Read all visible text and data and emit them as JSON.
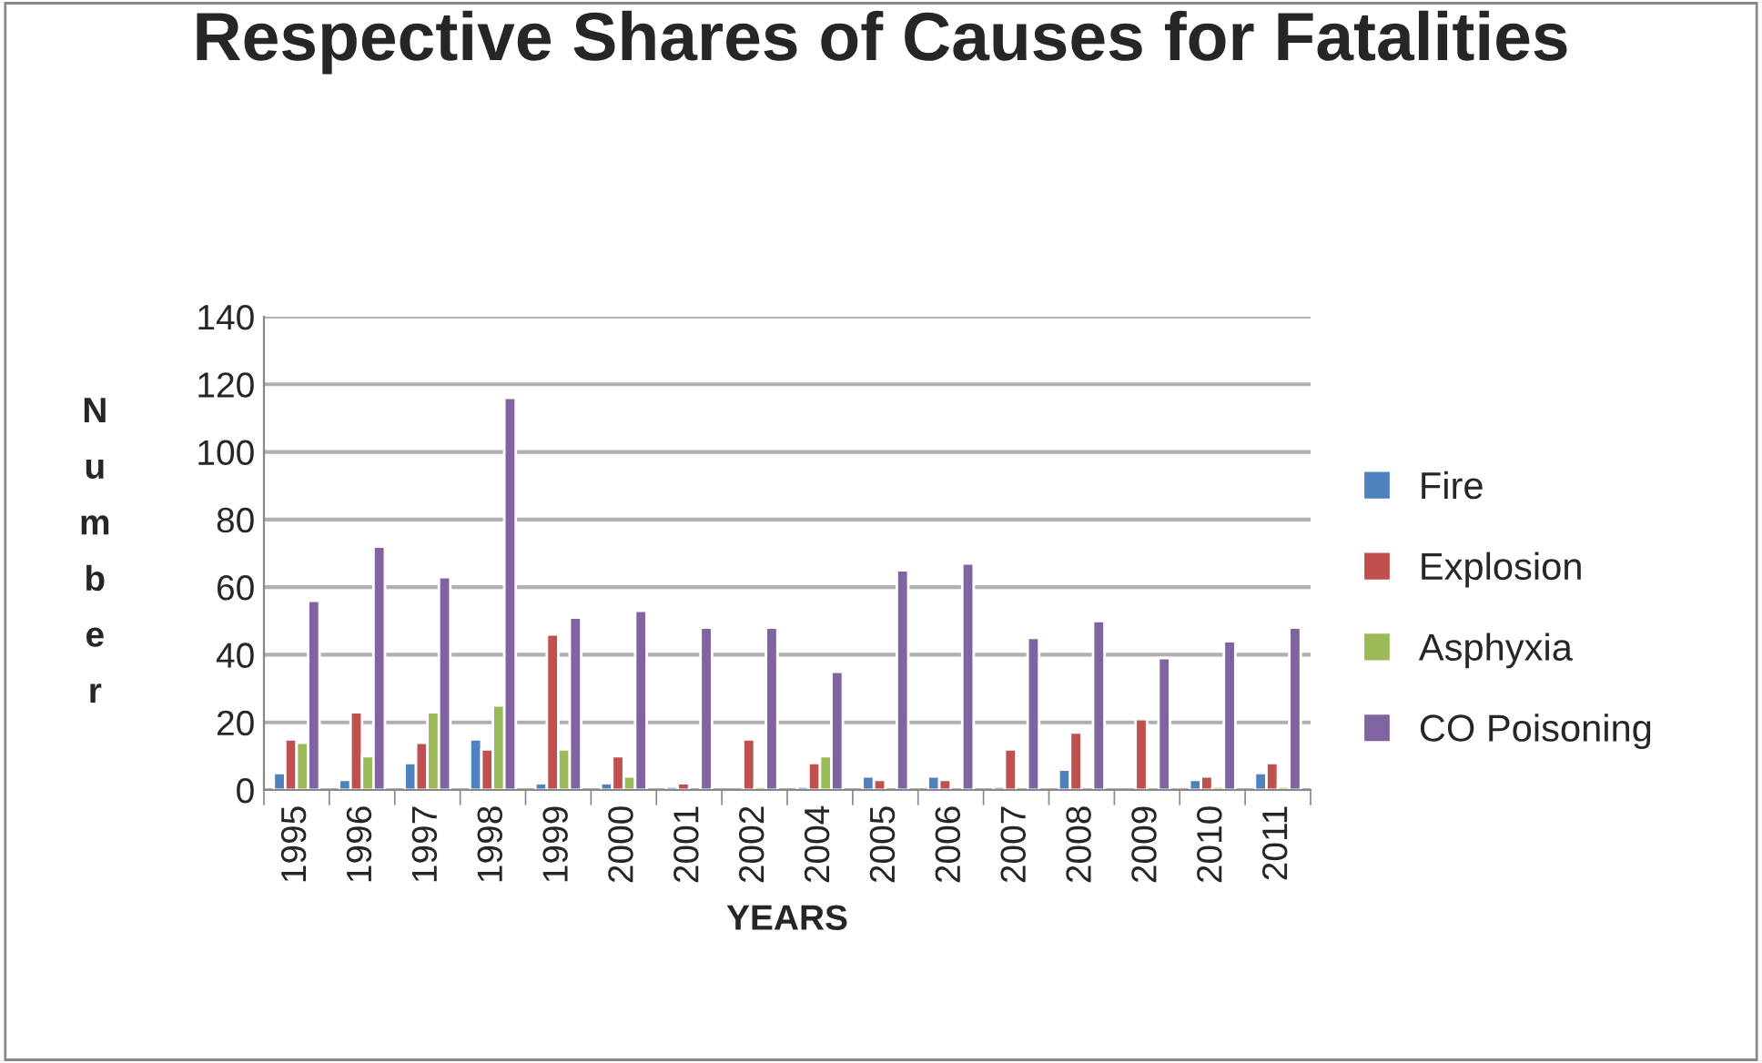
{
  "chart_data": {
    "type": "bar",
    "title": "Respective Shares of Causes for Fatalities",
    "xlabel": "YEARS",
    "ylabel": "Number",
    "categories": [
      "1995",
      "1996",
      "1997",
      "1998",
      "1999",
      "2000",
      "2001",
      "2002",
      "2004",
      "2005",
      "2006",
      "2007",
      "2008",
      "2009",
      "2010",
      "2011"
    ],
    "series": [
      {
        "name": "Fire",
        "color": "#4f81bd",
        "values": [
          5,
          3,
          8,
          15,
          2,
          2,
          1,
          null,
          1,
          4,
          4,
          1,
          6,
          null,
          3,
          5
        ]
      },
      {
        "name": "Explosion",
        "color": "#c0504d",
        "values": [
          15,
          23,
          14,
          12,
          46,
          10,
          2,
          15,
          8,
          3,
          3,
          12,
          17,
          21,
          4,
          8
        ]
      },
      {
        "name": "Asphyxia",
        "color": "#9bbb59",
        "values": [
          14,
          10,
          23,
          25,
          12,
          4,
          null,
          1,
          10,
          null,
          null,
          null,
          null,
          null,
          1,
          1
        ]
      },
      {
        "name": "CO Poisoning",
        "color": "#8064a2",
        "values": [
          56,
          72,
          63,
          116,
          51,
          53,
          48,
          48,
          35,
          65,
          67,
          45,
          50,
          39,
          44,
          48
        ]
      }
    ],
    "ylim": [
      0,
      140
    ],
    "yticks": [
      0,
      20,
      40,
      60,
      80,
      100,
      120,
      140
    ],
    "grid": "y",
    "legend": "right"
  }
}
